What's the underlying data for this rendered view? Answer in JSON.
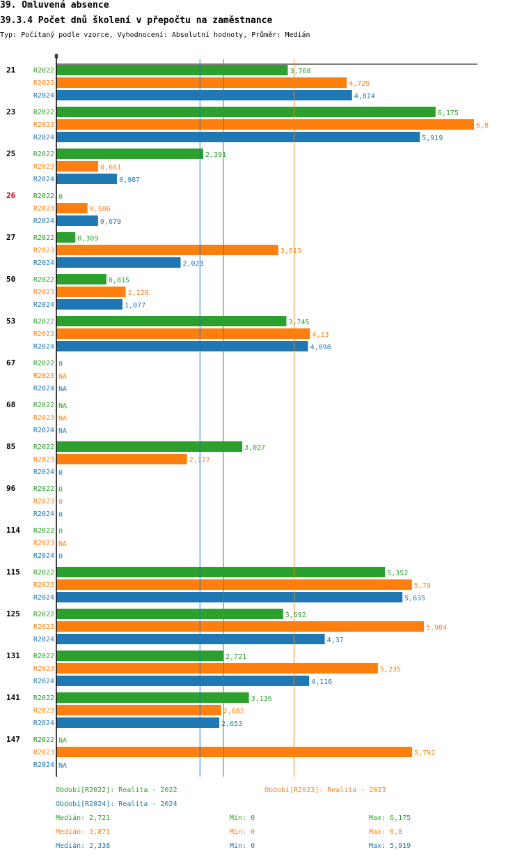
{
  "header": {
    "title": "39. Omluvená absence",
    "subtitle": "39.3.4 Počet dnů školení v přepočtu na zaměstnance",
    "type_line": "Typ: Počítaný podle vzorce, Vyhodnocení: Absolutní hodnoty, Průměr: Medián"
  },
  "colors": {
    "R2022": "#2ca02c",
    "R2023": "#ff7f0e",
    "R2024": "#1f77b4",
    "highlight": "#cc0000"
  },
  "chart_data": {
    "type": "bar",
    "orientation": "horizontal",
    "x_tick_label": "0",
    "xlim": [
      0,
      6.8
    ],
    "series_names": [
      "R2022",
      "R2023",
      "R2024"
    ],
    "groups": [
      {
        "label": "21",
        "highlight": false,
        "values": [
          3.768,
          4.729,
          4.814
        ],
        "labels": [
          "3,768",
          "4,729",
          "4,814"
        ]
      },
      {
        "label": "23",
        "highlight": false,
        "values": [
          6.175,
          6.8,
          5.919
        ],
        "labels": [
          "6,175",
          "6,8",
          "5,919"
        ]
      },
      {
        "label": "25",
        "highlight": false,
        "values": [
          2.391,
          0.681,
          0.987
        ],
        "labels": [
          "2,391",
          "0,681",
          "0,987"
        ]
      },
      {
        "label": "26",
        "highlight": true,
        "values": [
          0,
          0.506,
          0.679
        ],
        "labels": [
          "0",
          "0,506",
          "0,679"
        ]
      },
      {
        "label": "27",
        "highlight": false,
        "values": [
          0.309,
          3.613,
          2.023
        ],
        "labels": [
          "0,309",
          "3,613",
          "2,023"
        ]
      },
      {
        "label": "50",
        "highlight": false,
        "values": [
          0.815,
          1.128,
          1.077
        ],
        "labels": [
          "0,815",
          "1,128",
          "1,077"
        ]
      },
      {
        "label": "53",
        "highlight": false,
        "values": [
          3.745,
          4.13,
          4.098
        ],
        "labels": [
          "3,745",
          "4,13",
          "4,098"
        ]
      },
      {
        "label": "67",
        "highlight": false,
        "values": [
          0,
          null,
          null
        ],
        "labels": [
          "0",
          "NA",
          "NA"
        ]
      },
      {
        "label": "68",
        "highlight": false,
        "values": [
          null,
          null,
          null
        ],
        "labels": [
          "NA",
          "NA",
          "NA"
        ]
      },
      {
        "label": "85",
        "highlight": false,
        "values": [
          3.027,
          2.127,
          0
        ],
        "labels": [
          "3,027",
          "2,127",
          "0"
        ]
      },
      {
        "label": "96",
        "highlight": false,
        "values": [
          0,
          0,
          0
        ],
        "labels": [
          "0",
          "0",
          "0"
        ]
      },
      {
        "label": "114",
        "highlight": false,
        "values": [
          0,
          null,
          0
        ],
        "labels": [
          "0",
          "NA",
          "0"
        ]
      },
      {
        "label": "115",
        "highlight": false,
        "values": [
          5.352,
          5.79,
          5.635
        ],
        "labels": [
          "5,352",
          "5,79",
          "5,635"
        ]
      },
      {
        "label": "125",
        "highlight": false,
        "values": [
          3.692,
          5.984,
          4.37
        ],
        "labels": [
          "3,692",
          "5,984",
          "4,37"
        ]
      },
      {
        "label": "131",
        "highlight": false,
        "values": [
          2.721,
          5.235,
          4.116
        ],
        "labels": [
          "2,721",
          "5,235",
          "4,116"
        ]
      },
      {
        "label": "141",
        "highlight": false,
        "values": [
          3.136,
          2.682,
          2.653
        ],
        "labels": [
          "3,136",
          "2,682",
          "2,653"
        ]
      },
      {
        "label": "147",
        "highlight": false,
        "values": [
          null,
          5.792,
          null
        ],
        "labels": [
          "NA",
          "5,792",
          "NA"
        ]
      }
    ],
    "reference_lines": [
      {
        "series": "R2022",
        "value": 2.721
      },
      {
        "series": "R2023",
        "value": 3.871
      },
      {
        "series": "R2024",
        "value": 2.338
      }
    ]
  },
  "legend": {
    "period_2022": "Období[R2022]: Realita - 2022",
    "period_2023": "Období[R2023]: Realita - 2023",
    "period_2024": "Období[R2024]: Realita - 2024",
    "stats": [
      {
        "median": "Medián: 2,721",
        "min": "Min: 0",
        "max": "Max: 6,175"
      },
      {
        "median": "Medián: 3,871",
        "min": "Min: 0",
        "max": "Max: 6,8"
      },
      {
        "median": "Medián: 2,338",
        "min": "Min: 0",
        "max": "Max: 5,919"
      }
    ]
  }
}
